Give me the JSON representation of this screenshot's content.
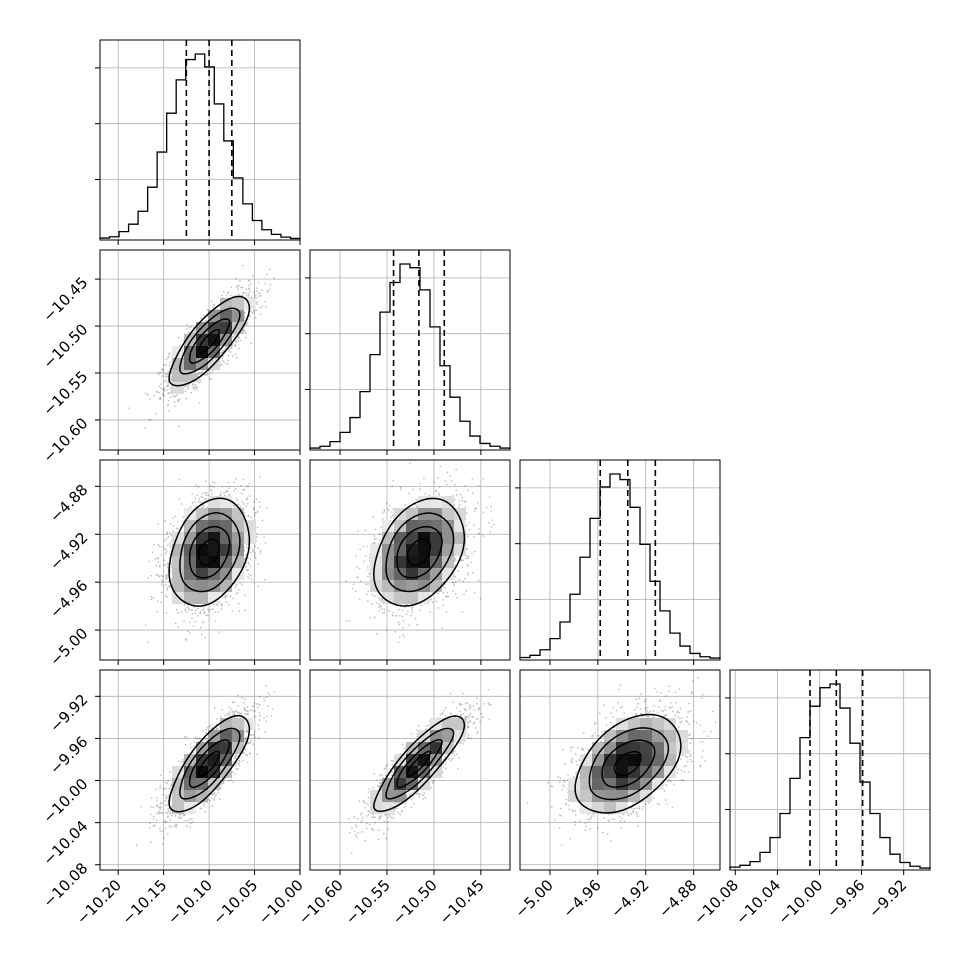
{
  "chart_data": {
    "type": "corner",
    "grid": true,
    "params": [
      {
        "key": "p1",
        "mean": -10.1,
        "sd": 0.022,
        "quantiles": [
          -10.125,
          -10.1,
          -10.075
        ],
        "range": [
          -10.22,
          -10.0
        ],
        "ticks": [
          -10.2,
          -10.15,
          -10.1,
          -10.05,
          -10.0
        ],
        "tick_labels": [
          "−10.20",
          "−10.15",
          "−10.10",
          "−10.05",
          "−10.00"
        ],
        "hist": [
          0.005,
          0.012,
          0.04,
          0.08,
          0.15,
          0.28,
          0.47,
          0.68,
          0.86,
          0.97,
          1.0,
          0.93,
          0.73,
          0.53,
          0.33,
          0.19,
          0.1,
          0.05,
          0.025,
          0.01,
          0.003
        ]
      },
      {
        "key": "p2",
        "mean": -10.516,
        "sd": 0.024,
        "quantiles": [
          -10.543,
          -10.516,
          -10.489
        ],
        "range": [
          -10.632,
          -10.419
        ],
        "ticks": [
          -10.6,
          -10.55,
          -10.5,
          -10.45
        ],
        "tick_labels": [
          "−10.60",
          "−10.55",
          "−10.50",
          "−10.45"
        ],
        "hist": [
          0.005,
          0.015,
          0.04,
          0.09,
          0.17,
          0.31,
          0.51,
          0.74,
          0.9,
          1.0,
          0.98,
          0.86,
          0.66,
          0.45,
          0.28,
          0.15,
          0.07,
          0.03,
          0.015,
          0.005
        ]
      },
      {
        "key": "p3",
        "mean": -4.935,
        "sd": 0.022,
        "quantiles": [
          -4.958,
          -4.935,
          -4.912
        ],
        "range": [
          -5.025,
          -4.858
        ],
        "ticks": [
          -5.0,
          -4.96,
          -4.92,
          -4.88
        ],
        "tick_labels": [
          "−5.00",
          "−4.96",
          "−4.92",
          "−4.88"
        ],
        "hist": [
          0.008,
          0.02,
          0.05,
          0.11,
          0.2,
          0.35,
          0.55,
          0.76,
          0.93,
          1.0,
          0.97,
          0.82,
          0.62,
          0.42,
          0.26,
          0.14,
          0.07,
          0.03,
          0.012,
          0.005
        ]
      },
      {
        "key": "p4",
        "mean": -9.984,
        "sd": 0.023,
        "quantiles": [
          -10.009,
          -9.984,
          -9.959
        ],
        "range": [
          -10.085,
          -9.895
        ],
        "ticks": [
          -10.08,
          -10.04,
          -10.0,
          -9.96,
          -9.92
        ],
        "tick_labels": [
          "−10.08",
          "−10.04",
          "−10.00",
          "−9.96",
          "−9.92"
        ],
        "hist": [
          0.01,
          0.02,
          0.04,
          0.09,
          0.17,
          0.3,
          0.49,
          0.71,
          0.88,
          0.98,
          1.0,
          0.87,
          0.68,
          0.47,
          0.3,
          0.17,
          0.08,
          0.035,
          0.015,
          0.005
        ]
      }
    ],
    "correlations": [
      [
        1,
        0.8,
        0.3,
        0.78
      ],
      [
        0.8,
        1,
        0.35,
        0.86
      ],
      [
        0.3,
        0.35,
        1,
        0.45
      ],
      [
        0.78,
        0.86,
        0.45,
        1
      ]
    ],
    "contour_levels_sigma": [
      0.5,
      1.0,
      1.5,
      2.0
    ]
  }
}
